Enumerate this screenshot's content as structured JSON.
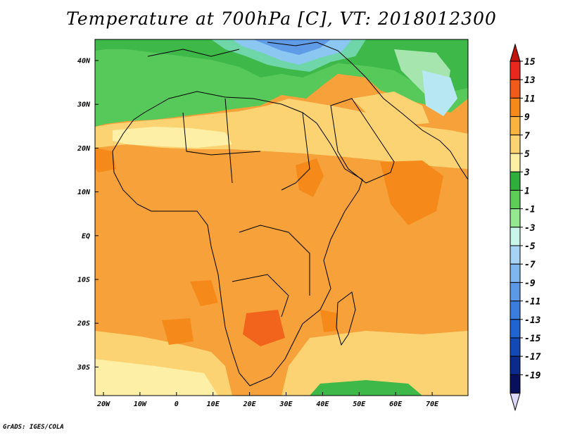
{
  "title": "Temperature at 700hPa [C], VT: 2018012300",
  "credit": "GrADS: IGES/COLA",
  "map": {
    "variable": "Temperature",
    "level": "700hPa",
    "units": "C",
    "valid_time": "2018012300",
    "lon_labels": [
      "20W",
      "10W",
      "0",
      "10E",
      "20E",
      "30E",
      "40E",
      "50E",
      "60E",
      "70E"
    ],
    "lat_labels": [
      "40N",
      "30N",
      "20N",
      "10N",
      "EQ",
      "10S",
      "20S",
      "30S"
    ]
  },
  "colorbar": {
    "labels": [
      "15",
      "13",
      "11",
      "9",
      "7",
      "5",
      "3",
      "1",
      "-1",
      "-3",
      "-5",
      "-7",
      "-9",
      "-11",
      "-13",
      "-15",
      "-17",
      "-19"
    ],
    "colors": [
      "#e8281e",
      "#f25a1a",
      "#f58a1a",
      "#f9b341",
      "#fbd372",
      "#fdf0a6",
      "#2fae3c",
      "#5ccd58",
      "#94e890",
      "#c8f6e8",
      "#a7d4f4",
      "#7fb6ee",
      "#5b99e6",
      "#3a7ddc",
      "#2064d2",
      "#1349b4",
      "#0a2a8c",
      "#08105c"
    ],
    "top_arrow_color": "#c0120c",
    "bottom_arrow_color": "#dcd8f8"
  }
}
